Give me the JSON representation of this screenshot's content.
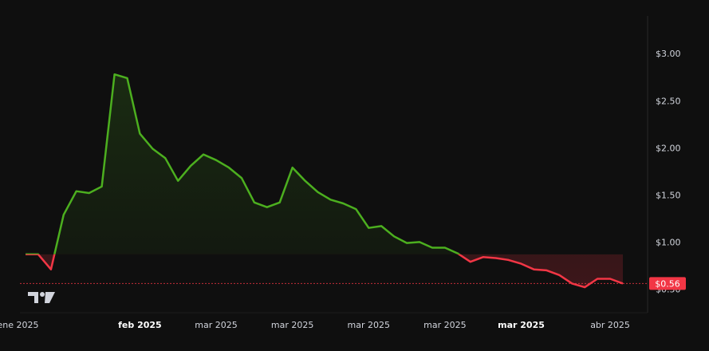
{
  "chart_data": {
    "type": "area",
    "ylim": [
      0.25,
      3.4
    ],
    "y_ticks": [
      {
        "value": 3.0,
        "label": "$3.00"
      },
      {
        "value": 2.5,
        "label": "$2.50"
      },
      {
        "value": 2.0,
        "label": "$2.00"
      },
      {
        "value": 1.5,
        "label": "$1.50"
      },
      {
        "value": 1.0,
        "label": "$1.00"
      },
      {
        "value": 0.5,
        "label": "$0.50"
      }
    ],
    "x_ticks": [
      {
        "index": -0.6,
        "label": "ene 2025",
        "bold": false
      },
      {
        "index": 9,
        "label": "feb 2025",
        "bold": true
      },
      {
        "index": 15,
        "label": "mar 2025",
        "bold": false
      },
      {
        "index": 21,
        "label": "mar 2025",
        "bold": false
      },
      {
        "index": 27,
        "label": "mar 2025",
        "bold": false
      },
      {
        "index": 33,
        "label": "mar 2025",
        "bold": false
      },
      {
        "index": 39,
        "label": "mar 2025",
        "bold": true
      },
      {
        "index": 46,
        "label": "abr 2025",
        "bold": false
      }
    ],
    "baseline": 0.87,
    "values": [
      0.87,
      0.87,
      0.71,
      1.29,
      1.54,
      1.52,
      1.59,
      2.78,
      2.74,
      2.15,
      1.99,
      1.89,
      1.65,
      1.81,
      1.93,
      1.87,
      1.79,
      1.68,
      1.42,
      1.37,
      1.42,
      1.79,
      1.65,
      1.53,
      1.45,
      1.41,
      1.35,
      1.15,
      1.17,
      1.06,
      0.99,
      1.0,
      0.94,
      0.94,
      0.88,
      0.79,
      0.84,
      0.83,
      0.81,
      0.77,
      0.71,
      0.7,
      0.65,
      0.56,
      0.52,
      0.61,
      0.61,
      0.56
    ],
    "last_price": 0.56,
    "last_price_label": "$0.56",
    "up_color": "#4caf1f",
    "down_color": "#f23645",
    "grid": false
  }
}
